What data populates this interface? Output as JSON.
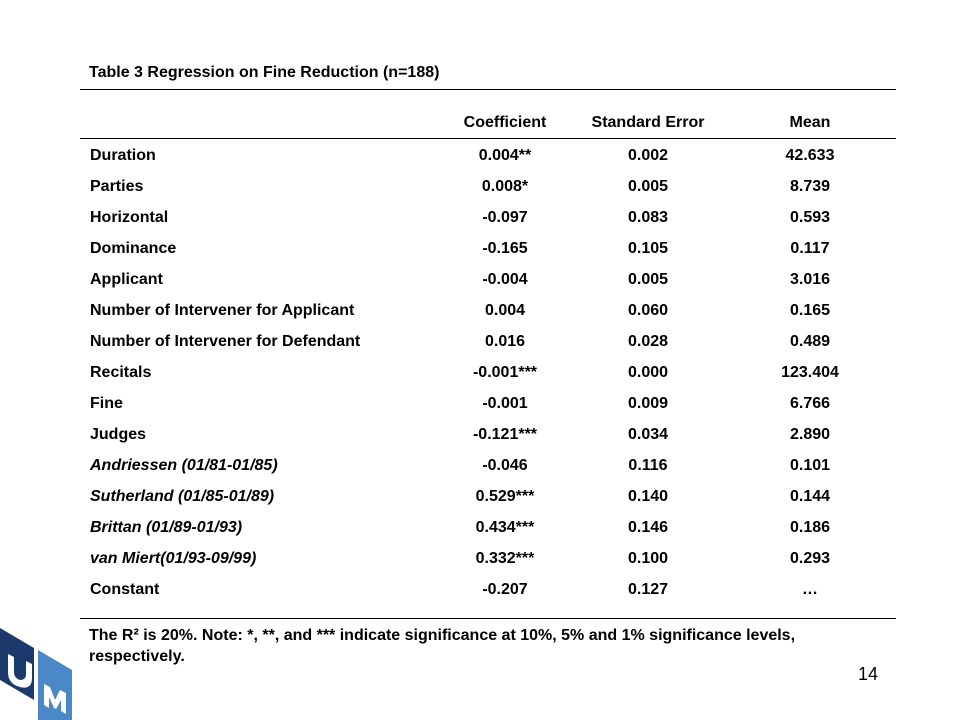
{
  "table": {
    "caption": "Table 3 Regression on Fine Reduction (n=188)",
    "headers": [
      "",
      "Coefficient",
      "Standard Error",
      "Mean"
    ],
    "rows": [
      {
        "label": "Duration",
        "coef": "0.004**",
        "se": "0.002",
        "mean": "42.633",
        "italic": false
      },
      {
        "label": "Parties",
        "coef": "0.008*",
        "se": "0.005",
        "mean": "8.739",
        "italic": false
      },
      {
        "label": "Horizontal",
        "coef": "-0.097",
        "se": "0.083",
        "mean": "0.593",
        "italic": false
      },
      {
        "label": "Dominance",
        "coef": "-0.165",
        "se": "0.105",
        "mean": "0.117",
        "italic": false
      },
      {
        "label": "Applicant",
        "coef": "-0.004",
        "se": "0.005",
        "mean": "3.016",
        "italic": false
      },
      {
        "label": "Number of Intervener for Applicant",
        "coef": "0.004",
        "se": "0.060",
        "mean": "0.165",
        "italic": false
      },
      {
        "label": "Number of Intervener for Defendant",
        "coef": "0.016",
        "se": "0.028",
        "mean": "0.489",
        "italic": false
      },
      {
        "label": "Recitals",
        "coef": "-0.001***",
        "se": "0.000",
        "mean": "123.404",
        "italic": false
      },
      {
        "label": "Fine",
        "coef": "-0.001",
        "se": "0.009",
        "mean": "6.766",
        "italic": false
      },
      {
        "label": "Judges",
        "coef": "-0.121***",
        "se": "0.034",
        "mean": "2.890",
        "italic": false
      },
      {
        "label": "Andriessen (01/81-01/85)",
        "coef": "-0.046",
        "se": "0.116",
        "mean": "0.101",
        "italic": true
      },
      {
        "label": "Sutherland (01/85-01/89)",
        "coef": "0.529***",
        "se": "0.140",
        "mean": "0.144",
        "italic": true
      },
      {
        "label": "Brittan (01/89-01/93)",
        "coef": "0.434***",
        "se": "0.146",
        "mean": "0.186",
        "italic": true
      },
      {
        "label": "van Miert(01/93-09/99)",
        "coef": "0.332***",
        "se": "0.100",
        "mean": "0.293",
        "italic": true
      },
      {
        "label": "Constant",
        "coef": "-0.207",
        "se": "0.127",
        "mean": "…",
        "italic": false
      }
    ],
    "note": "The R² is 20%. Note: *, **, and *** indicate significance at 10%, 5% and 1% significance levels, respectively."
  },
  "page_number": "14",
  "logo": {
    "letters": "UM",
    "colors": {
      "dark": "#1b3a6b",
      "light": "#4a88c7"
    }
  }
}
